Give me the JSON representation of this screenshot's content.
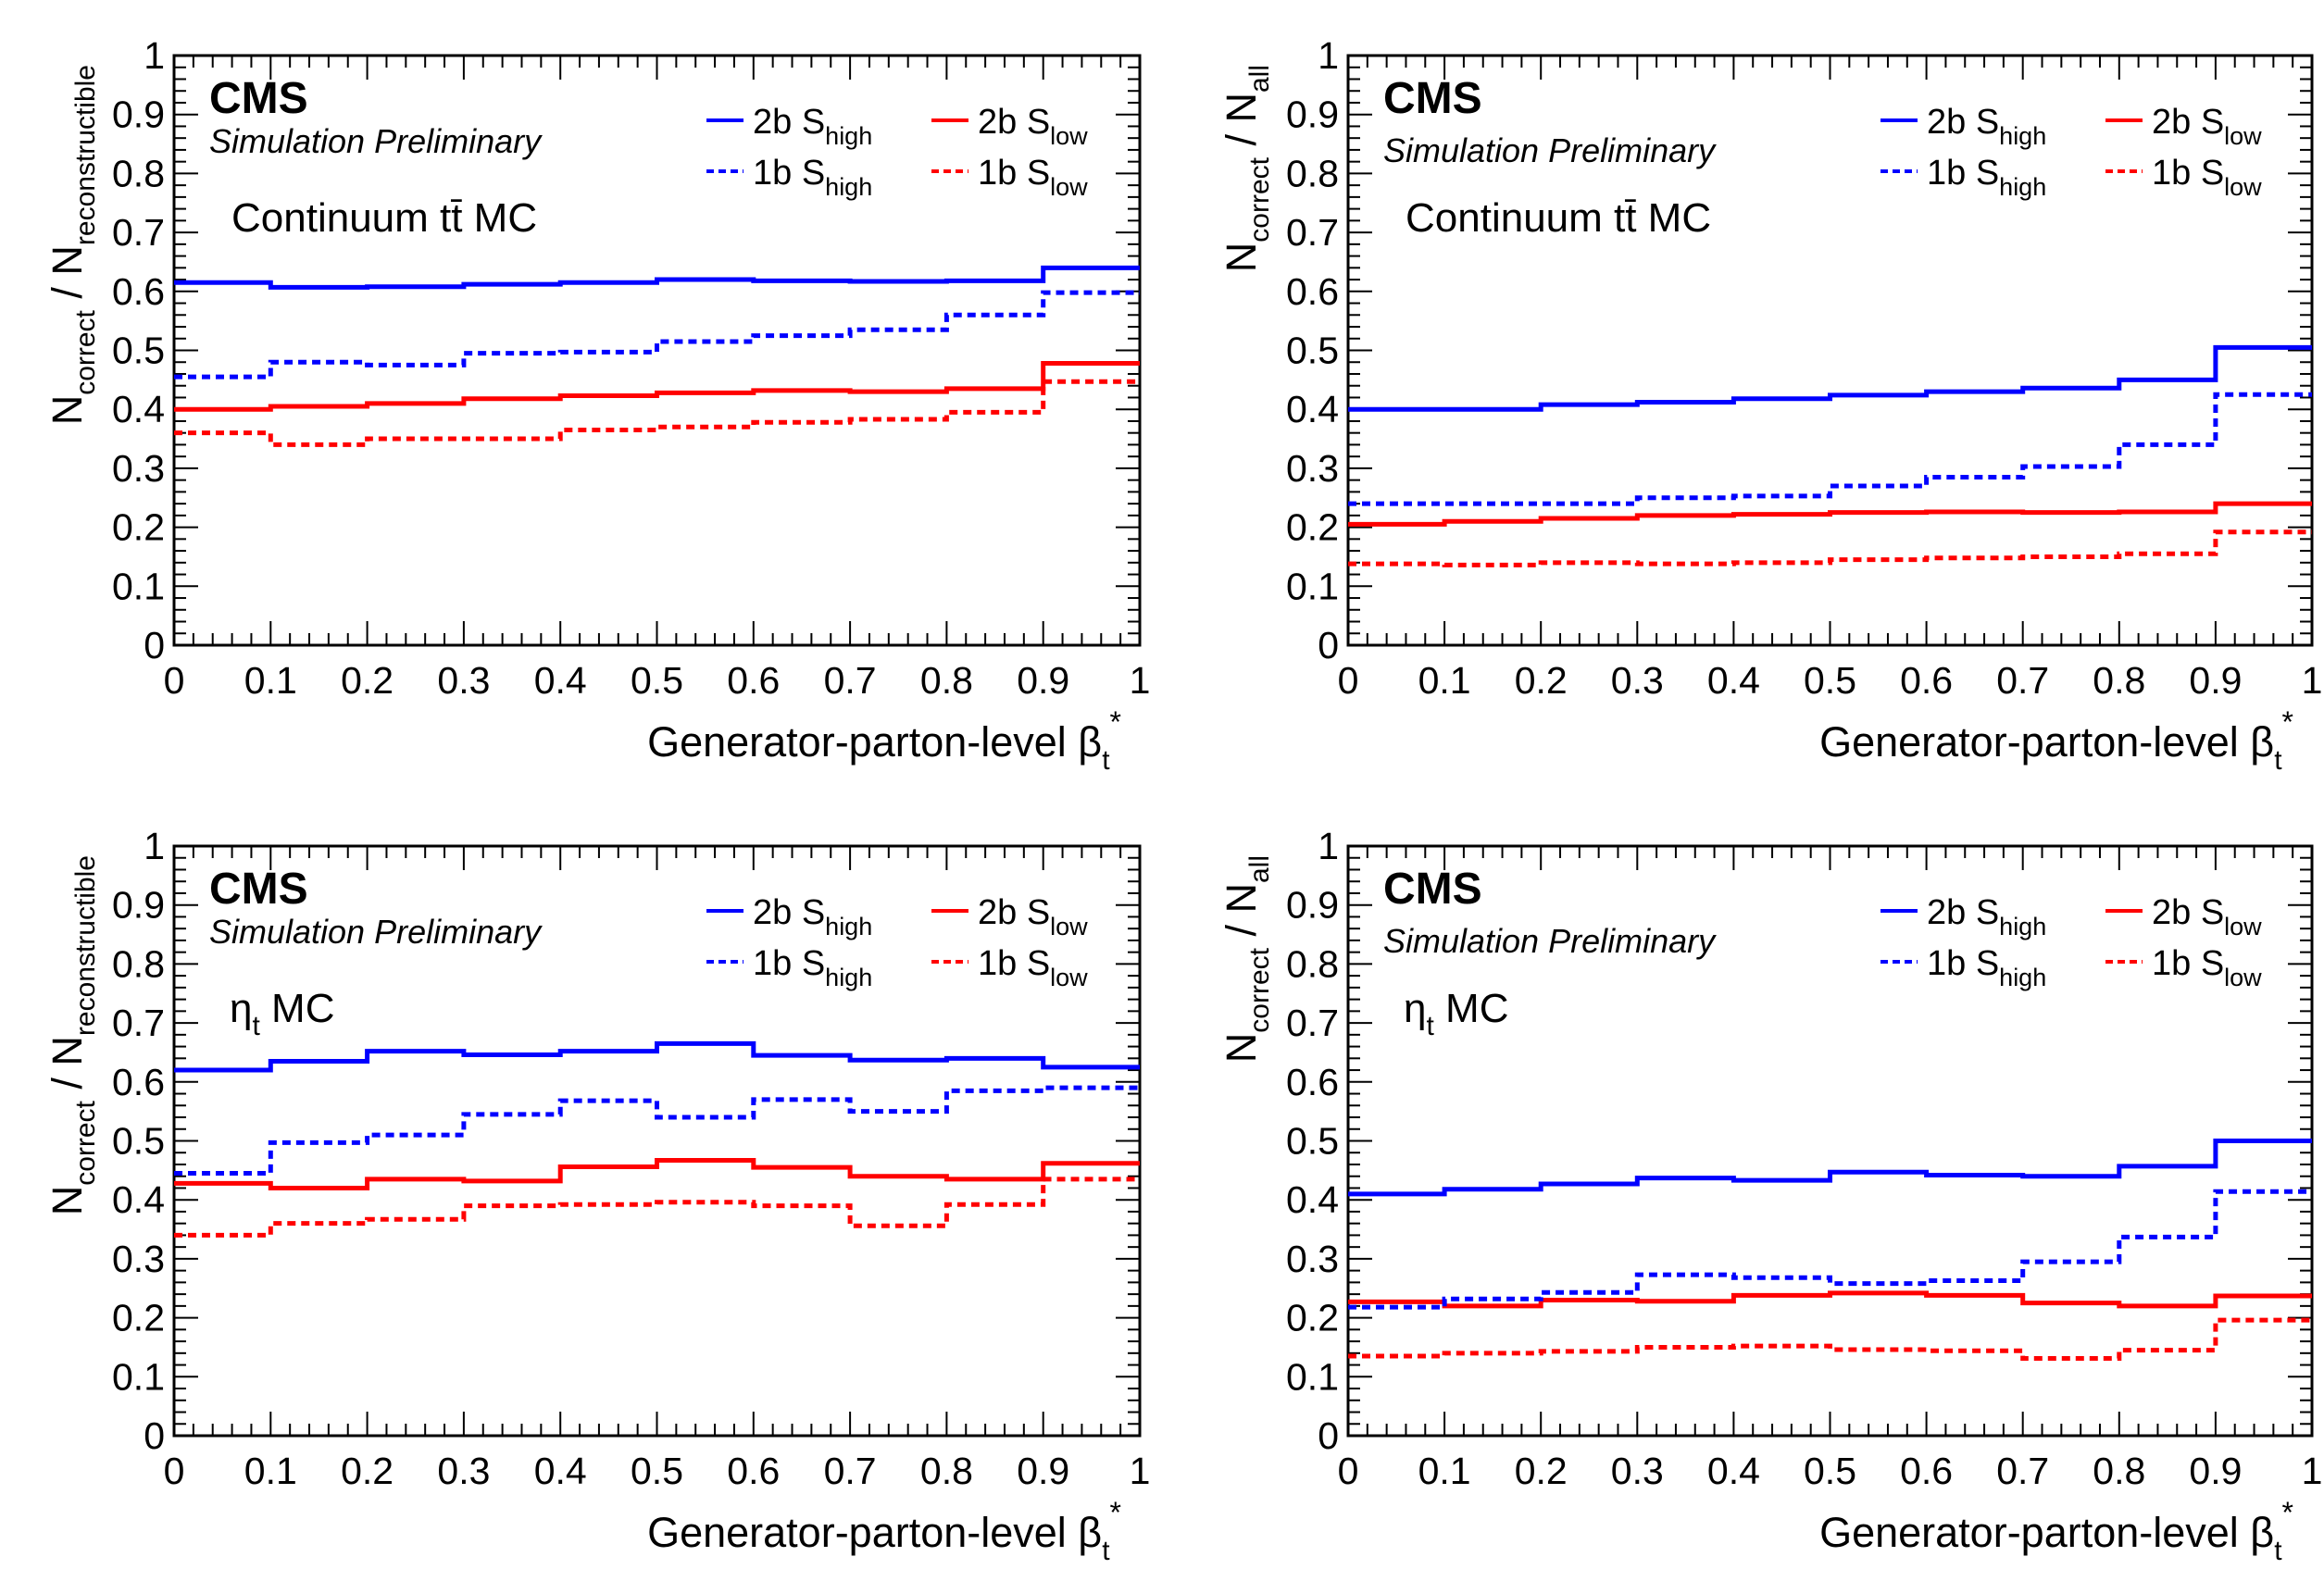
{
  "colors": {
    "blue": "#0000ff",
    "red": "#ff0000",
    "axis": "#000000"
  },
  "chart_data": [
    {
      "type": "line",
      "style": "step histogram",
      "experiment": "CMS",
      "subtitle": "Simulation Preliminary",
      "sample": "Continuum tt̄ MC",
      "ylabel": {
        "main": "N",
        "sub1": "correct",
        "mid": " / N",
        "sub2": "reconstructible"
      },
      "xlabel": {
        "main": "Generator-parton-level β",
        "sub": "t",
        "sup": "*"
      },
      "xlim": [
        0,
        1
      ],
      "ylim": [
        0,
        1
      ],
      "xticks": [
        "0",
        "0.1",
        "0.2",
        "0.3",
        "0.4",
        "0.5",
        "0.6",
        "0.7",
        "0.8",
        "0.9",
        "1"
      ],
      "yticks": [
        "0",
        "0.1",
        "0.2",
        "0.3",
        "0.4",
        "0.5",
        "0.6",
        "0.7",
        "0.8",
        "0.9",
        "1"
      ],
      "bin_edges": [
        0,
        0.1,
        0.2,
        0.3,
        0.4,
        0.5,
        0.6,
        0.7,
        0.8,
        0.9,
        1.0
      ],
      "legend_position": "top-right",
      "series": [
        {
          "name": "2b S_high",
          "label": "2b S",
          "sub": "high",
          "color": "#0000ff",
          "dashed": false,
          "values": [
            0.615,
            0.607,
            0.608,
            0.612,
            0.615,
            0.62,
            0.618,
            0.617,
            0.618,
            0.64
          ]
        },
        {
          "name": "2b S_low",
          "label": "2b S",
          "sub": "low",
          "color": "#ff0000",
          "dashed": false,
          "values": [
            0.4,
            0.405,
            0.41,
            0.418,
            0.423,
            0.428,
            0.432,
            0.43,
            0.435,
            0.478
          ]
        },
        {
          "name": "1b S_high",
          "label": "1b S",
          "sub": "high",
          "color": "#0000ff",
          "dashed": true,
          "values": [
            0.455,
            0.48,
            0.475,
            0.495,
            0.497,
            0.515,
            0.525,
            0.535,
            0.56,
            0.598
          ]
        },
        {
          "name": "1b S_low",
          "label": "1b S",
          "sub": "low",
          "color": "#ff0000",
          "dashed": true,
          "values": [
            0.36,
            0.34,
            0.35,
            0.35,
            0.365,
            0.37,
            0.378,
            0.383,
            0.395,
            0.447
          ]
        }
      ]
    },
    {
      "type": "line",
      "style": "step histogram",
      "experiment": "CMS",
      "subtitle": "Simulation Preliminary",
      "sample": "Continuum tt̄ MC",
      "ylabel": {
        "main": "N",
        "sub1": "correct",
        "mid": " / N",
        "sub2": "all"
      },
      "xlabel": {
        "main": "Generator-parton-level β",
        "sub": "t",
        "sup": "*"
      },
      "xlim": [
        0,
        1
      ],
      "ylim": [
        0,
        1
      ],
      "xticks": [
        "0",
        "0.1",
        "0.2",
        "0.3",
        "0.4",
        "0.5",
        "0.6",
        "0.7",
        "0.8",
        "0.9",
        "1"
      ],
      "yticks": [
        "0",
        "0.1",
        "0.2",
        "0.3",
        "0.4",
        "0.5",
        "0.6",
        "0.7",
        "0.8",
        "0.9",
        "1"
      ],
      "bin_edges": [
        0,
        0.1,
        0.2,
        0.3,
        0.4,
        0.5,
        0.6,
        0.7,
        0.8,
        0.9,
        1.0
      ],
      "legend_position": "top-right",
      "series": [
        {
          "name": "2b S_high",
          "label": "2b S",
          "sub": "high",
          "color": "#0000ff",
          "dashed": false,
          "values": [
            0.4,
            0.4,
            0.408,
            0.412,
            0.418,
            0.424,
            0.43,
            0.436,
            0.45,
            0.505
          ]
        },
        {
          "name": "2b S_low",
          "label": "2b S",
          "sub": "low",
          "color": "#ff0000",
          "dashed": false,
          "values": [
            0.205,
            0.21,
            0.215,
            0.22,
            0.222,
            0.225,
            0.226,
            0.225,
            0.226,
            0.24
          ]
        },
        {
          "name": "1b S_high",
          "label": "1b S",
          "sub": "high",
          "color": "#0000ff",
          "dashed": true,
          "values": [
            0.24,
            0.24,
            0.24,
            0.25,
            0.253,
            0.27,
            0.285,
            0.303,
            0.34,
            0.425
          ]
        },
        {
          "name": "1b S_low",
          "label": "1b S",
          "sub": "low",
          "color": "#ff0000",
          "dashed": true,
          "values": [
            0.138,
            0.136,
            0.14,
            0.138,
            0.14,
            0.145,
            0.148,
            0.15,
            0.155,
            0.192
          ]
        }
      ]
    },
    {
      "type": "line",
      "style": "step histogram",
      "experiment": "CMS",
      "subtitle": "Simulation Preliminary",
      "sample": "η",
      "sample_sub": "t",
      "sample_suffix": " MC",
      "ylabel": {
        "main": "N",
        "sub1": "correct",
        "mid": " / N",
        "sub2": "reconstructible"
      },
      "xlabel": {
        "main": "Generator-parton-level β",
        "sub": "t",
        "sup": "*"
      },
      "xlim": [
        0,
        1
      ],
      "ylim": [
        0,
        1
      ],
      "xticks": [
        "0",
        "0.1",
        "0.2",
        "0.3",
        "0.4",
        "0.5",
        "0.6",
        "0.7",
        "0.8",
        "0.9",
        "1"
      ],
      "yticks": [
        "0",
        "0.1",
        "0.2",
        "0.3",
        "0.4",
        "0.5",
        "0.6",
        "0.7",
        "0.8",
        "0.9",
        "1"
      ],
      "bin_edges": [
        0,
        0.1,
        0.2,
        0.3,
        0.4,
        0.5,
        0.6,
        0.7,
        0.8,
        0.9,
        1.0
      ],
      "legend_position": "top-right",
      "series": [
        {
          "name": "2b S_high",
          "label": "2b S",
          "sub": "high",
          "color": "#0000ff",
          "dashed": false,
          "values": [
            0.62,
            0.635,
            0.652,
            0.646,
            0.652,
            0.665,
            0.645,
            0.637,
            0.64,
            0.625
          ]
        },
        {
          "name": "2b S_low",
          "label": "2b S",
          "sub": "low",
          "color": "#ff0000",
          "dashed": false,
          "values": [
            0.428,
            0.42,
            0.435,
            0.432,
            0.456,
            0.467,
            0.455,
            0.44,
            0.435,
            0.462
          ]
        },
        {
          "name": "1b S_high",
          "label": "1b S",
          "sub": "high",
          "color": "#0000ff",
          "dashed": true,
          "values": [
            0.445,
            0.497,
            0.51,
            0.545,
            0.568,
            0.54,
            0.57,
            0.55,
            0.585,
            0.59
          ]
        },
        {
          "name": "1b S_low",
          "label": "1b S",
          "sub": "low",
          "color": "#ff0000",
          "dashed": true,
          "values": [
            0.34,
            0.36,
            0.367,
            0.39,
            0.392,
            0.396,
            0.39,
            0.356,
            0.392,
            0.435
          ]
        }
      ]
    },
    {
      "type": "line",
      "style": "step histogram",
      "experiment": "CMS",
      "subtitle": "Simulation Preliminary",
      "sample": "η",
      "sample_sub": "t",
      "sample_suffix": " MC",
      "ylabel": {
        "main": "N",
        "sub1": "correct",
        "mid": " / N",
        "sub2": "all"
      },
      "xlabel": {
        "main": "Generator-parton-level β",
        "sub": "t",
        "sup": "*"
      },
      "xlim": [
        0,
        1
      ],
      "ylim": [
        0,
        1
      ],
      "xticks": [
        "0",
        "0.1",
        "0.2",
        "0.3",
        "0.4",
        "0.5",
        "0.6",
        "0.7",
        "0.8",
        "0.9",
        "1"
      ],
      "yticks": [
        "0",
        "0.1",
        "0.2",
        "0.3",
        "0.4",
        "0.5",
        "0.6",
        "0.7",
        "0.8",
        "0.9",
        "1"
      ],
      "bin_edges": [
        0,
        0.1,
        0.2,
        0.3,
        0.4,
        0.5,
        0.6,
        0.7,
        0.8,
        0.9,
        1.0
      ],
      "legend_position": "top-right",
      "series": [
        {
          "name": "2b S_high",
          "label": "2b S",
          "sub": "high",
          "color": "#0000ff",
          "dashed": false,
          "values": [
            0.41,
            0.418,
            0.427,
            0.437,
            0.433,
            0.447,
            0.442,
            0.44,
            0.457,
            0.5
          ]
        },
        {
          "name": "2b S_low",
          "label": "2b S",
          "sub": "low",
          "color": "#ff0000",
          "dashed": false,
          "values": [
            0.227,
            0.22,
            0.23,
            0.228,
            0.238,
            0.242,
            0.238,
            0.225,
            0.22,
            0.237
          ]
        },
        {
          "name": "1b S_high",
          "label": "1b S",
          "sub": "high",
          "color": "#0000ff",
          "dashed": true,
          "values": [
            0.218,
            0.232,
            0.243,
            0.273,
            0.268,
            0.258,
            0.263,
            0.295,
            0.337,
            0.414
          ]
        },
        {
          "name": "1b S_low",
          "label": "1b S",
          "sub": "low",
          "color": "#ff0000",
          "dashed": true,
          "values": [
            0.135,
            0.14,
            0.143,
            0.15,
            0.152,
            0.146,
            0.144,
            0.131,
            0.145,
            0.196
          ]
        }
      ]
    }
  ]
}
